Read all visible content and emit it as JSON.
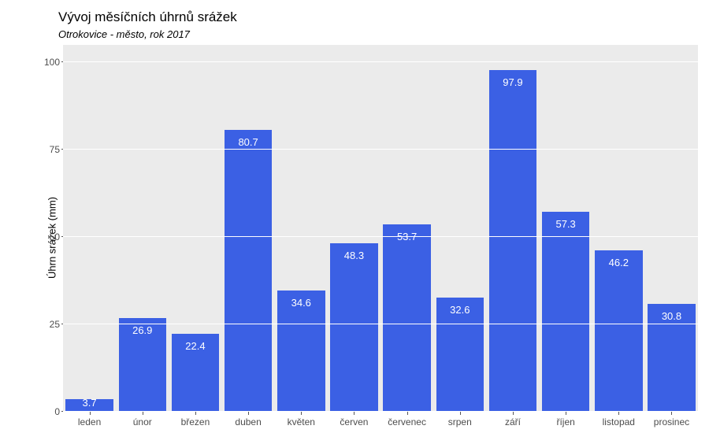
{
  "chart": {
    "type": "bar",
    "title": "Vývoj měsíčních úhrnů srážek",
    "subtitle": "Otrokovice - město, rok 2017",
    "ylabel": "Úhrn srážek (mm)",
    "title_fontsize": 17,
    "subtitle_fontsize": 13,
    "subtitle_fontstyle": "italic",
    "label_fontsize": 13,
    "tick_fontsize": 12,
    "bar_label_fontsize": 13,
    "background_color": "#ffffff",
    "panel_background_color": "#ebebeb",
    "grid_color": "#ffffff",
    "axis_text_color": "#4d4d4d",
    "bar_color": "#3b60e4",
    "bar_label_color": "#ffffff",
    "bar_width": 0.9,
    "ylim": [
      0,
      105
    ],
    "yticks": [
      0,
      25,
      50,
      75,
      100
    ],
    "categories": [
      "leden",
      "únor",
      "březen",
      "duben",
      "květen",
      "červen",
      "červenec",
      "srpen",
      "září",
      "říjen",
      "listopad",
      "prosinec"
    ],
    "values": [
      3.7,
      26.9,
      22.4,
      80.7,
      34.6,
      48.3,
      53.7,
      32.6,
      97.9,
      57.3,
      46.2,
      30.8
    ],
    "value_labels": [
      "3.7",
      "26.9",
      "22.4",
      "80.7",
      "34.6",
      "48.3",
      "53.7",
      "32.6",
      "97.9",
      "57.3",
      "46.2",
      "30.8"
    ]
  }
}
